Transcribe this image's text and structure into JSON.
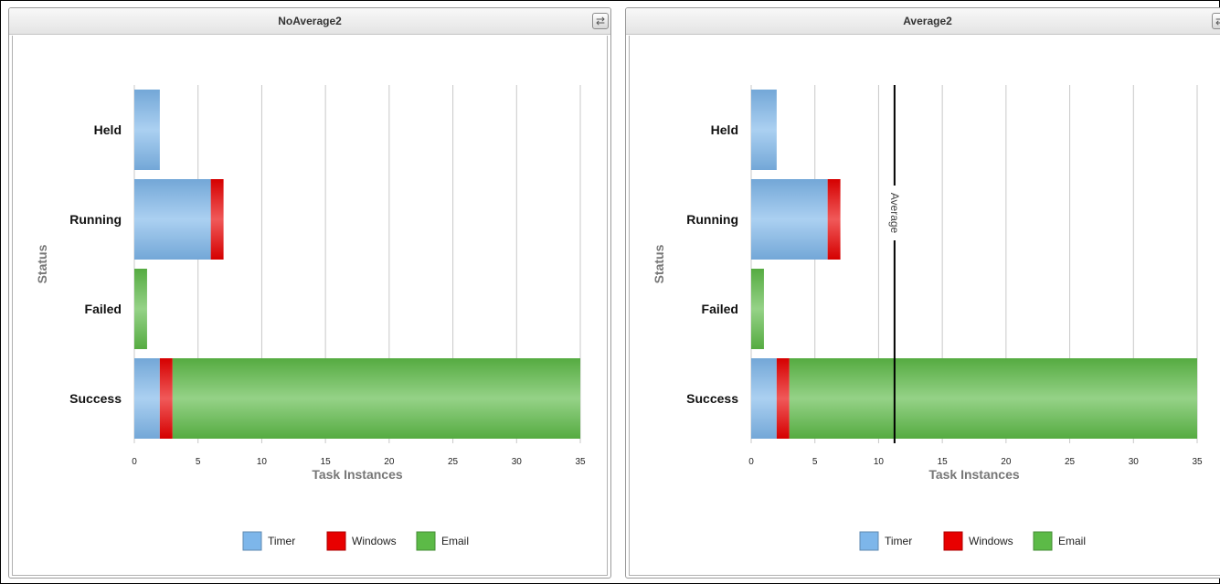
{
  "charts": [
    {
      "title": "NoAverage2",
      "chart_data": {
        "type": "bar",
        "orientation": "horizontal",
        "stacked": true,
        "title": "NoAverage2",
        "xlabel": "Task Instances",
        "ylabel": "Status",
        "categories": [
          "Held",
          "Running",
          "Failed",
          "Success"
        ],
        "series": [
          {
            "name": "Timer",
            "color": "#7db6ea",
            "values": [
              2,
              6,
              0,
              2
            ]
          },
          {
            "name": "Windows",
            "color": "#e80000",
            "values": [
              0,
              1,
              0,
              1
            ]
          },
          {
            "name": "Email",
            "color": "#5cba47",
            "values": [
              0,
              0,
              1,
              32
            ]
          }
        ],
        "xlim": [
          0,
          35
        ],
        "xticks": [
          0,
          5,
          10,
          15,
          20,
          25,
          30,
          35
        ],
        "grid": true,
        "legend": "bottom"
      }
    },
    {
      "title": "Average2",
      "chart_data": {
        "type": "bar",
        "orientation": "horizontal",
        "stacked": true,
        "title": "Average2",
        "xlabel": "Task Instances",
        "ylabel": "Status",
        "categories": [
          "Held",
          "Running",
          "Failed",
          "Success"
        ],
        "series": [
          {
            "name": "Timer",
            "color": "#7db6ea",
            "values": [
              2,
              6,
              0,
              2
            ]
          },
          {
            "name": "Windows",
            "color": "#e80000",
            "values": [
              0,
              1,
              0,
              1
            ]
          },
          {
            "name": "Email",
            "color": "#5cba47",
            "values": [
              0,
              0,
              1,
              32
            ]
          }
        ],
        "xlim": [
          0,
          35
        ],
        "xticks": [
          0,
          5,
          10,
          15,
          20,
          25,
          30,
          35
        ],
        "grid": true,
        "legend": "bottom",
        "reference_line": {
          "label": "Average",
          "value": 11.25
        }
      }
    }
  ]
}
